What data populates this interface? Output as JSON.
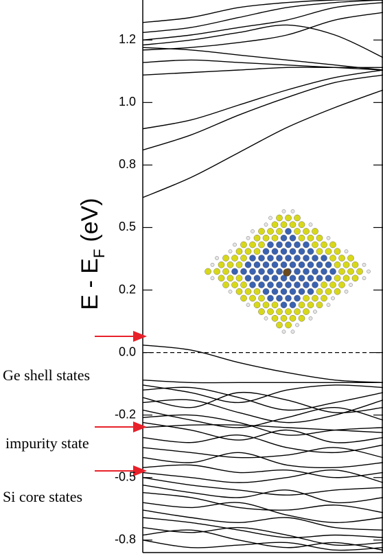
{
  "chart_data": {
    "type": "line",
    "ylabel_parts": [
      "E - E",
      "F",
      "(eV)"
    ],
    "annotations": [
      "Ge shell states",
      "impurity state",
      "Si core states"
    ],
    "x": [
      0,
      0.2,
      0.4,
      0.6,
      0.8,
      1.0
    ],
    "xlim": [
      0,
      1
    ],
    "ylim": [
      -0.8,
      1.41
    ],
    "yticks": [
      {
        "value": -0.75,
        "label": "-0.8"
      },
      {
        "value": -0.5,
        "label": "-0.5"
      },
      {
        "value": -0.25,
        "label": "-0.2"
      },
      {
        "value": 0,
        "label": "0.0"
      },
      {
        "value": 0.25,
        "label": "0.2"
      },
      {
        "value": 0.5,
        "label": "0.5"
      },
      {
        "value": 0.75,
        "label": "0.8"
      },
      {
        "value": 1.0,
        "label": "1.0"
      },
      {
        "value": 1.25,
        "label": "1.2"
      }
    ],
    "fermi_level": 0,
    "color": "#000000",
    "series": [
      {
        "values": [
          0.62,
          0.7,
          0.8,
          0.9,
          0.98,
          1.05
        ]
      },
      {
        "values": [
          0.81,
          0.87,
          0.95,
          1.02,
          1.08,
          1.11
        ]
      },
      {
        "values": [
          0.895,
          0.93,
          0.99,
          1.05,
          1.1,
          1.13
        ]
      },
      {
        "values": [
          1.11,
          1.12,
          1.13,
          1.14,
          1.14,
          1.14
        ]
      },
      {
        "values": [
          1.16,
          1.17,
          1.16,
          1.15,
          1.14,
          1.13
        ]
      },
      {
        "values": [
          1.22,
          1.21,
          1.19,
          1.17,
          1.15,
          1.13
        ]
      },
      {
        "values": [
          1.23,
          1.25,
          1.28,
          1.31,
          1.27,
          1.18
        ]
      },
      {
        "values": [
          1.21,
          1.22,
          1.24,
          1.27,
          1.33,
          1.36
        ]
      },
      {
        "values": [
          1.25,
          1.27,
          1.3,
          1.33,
          1.38,
          1.4
        ]
      },
      {
        "values": [
          1.28,
          1.3,
          1.34,
          1.38,
          1.4,
          1.41
        ]
      },
      {
        "values": [
          1.32,
          1.34,
          1.38,
          1.4,
          1.41,
          1.41
        ]
      },
      {
        "values": [
          0.03,
          0.01,
          -0.04,
          -0.08,
          -0.11,
          -0.12
        ]
      },
      {
        "values": [
          -0.11,
          -0.12,
          -0.12,
          -0.12,
          -0.12,
          -0.12
        ]
      },
      {
        "values": [
          -0.13,
          -0.16,
          -0.2,
          -0.15,
          -0.13,
          -0.14
        ]
      },
      {
        "values": [
          -0.15,
          -0.14,
          -0.18,
          -0.23,
          -0.2,
          -0.16
        ]
      },
      {
        "values": [
          -0.18,
          -0.22,
          -0.16,
          -0.19,
          -0.24,
          -0.22
        ]
      },
      {
        "values": [
          -0.2,
          -0.19,
          -0.24,
          -0.28,
          -0.25,
          -0.19
        ]
      },
      {
        "values": [
          -0.23,
          -0.27,
          -0.3,
          -0.26,
          -0.22,
          -0.27
        ]
      },
      {
        "values": [
          -0.26,
          -0.25,
          -0.28,
          -0.33,
          -0.31,
          -0.3
        ]
      },
      {
        "values": [
          -0.28,
          -0.31,
          -0.35,
          -0.31,
          -0.36,
          -0.34
        ]
      },
      {
        "values": [
          -0.3,
          -0.29,
          -0.29,
          -0.3,
          -0.31,
          -0.32
        ]
      },
      {
        "values": [
          -0.34,
          -0.36,
          -0.33,
          -0.38,
          -0.4,
          -0.37
        ]
      },
      {
        "values": [
          -0.38,
          -0.4,
          -0.42,
          -0.41,
          -0.38,
          -0.42
        ]
      },
      {
        "values": [
          -0.42,
          -0.44,
          -0.4,
          -0.45,
          -0.46,
          -0.44
        ]
      },
      {
        "values": [
          -0.46,
          -0.45,
          -0.48,
          -0.47,
          -0.5,
          -0.48
        ]
      },
      {
        "values": [
          -0.48,
          -0.5,
          -0.52,
          -0.5,
          -0.47,
          -0.52
        ]
      },
      {
        "values": [
          -0.5,
          -0.53,
          -0.55,
          -0.57,
          -0.55,
          -0.54
        ]
      },
      {
        "values": [
          -0.53,
          -0.56,
          -0.58,
          -0.55,
          -0.6,
          -0.58
        ]
      },
      {
        "values": [
          -0.56,
          -0.58,
          -0.62,
          -0.63,
          -0.61,
          -0.64
        ]
      },
      {
        "values": [
          -0.6,
          -0.62,
          -0.6,
          -0.65,
          -0.68,
          -0.66
        ]
      },
      {
        "values": [
          -0.63,
          -0.66,
          -0.68,
          -0.66,
          -0.7,
          -0.71
        ]
      },
      {
        "values": [
          -0.66,
          -0.68,
          -0.71,
          -0.74,
          -0.73,
          -0.74
        ]
      },
      {
        "values": [
          -0.7,
          -0.72,
          -0.7,
          -0.73,
          -0.77,
          -0.76
        ]
      },
      {
        "values": [
          -0.73,
          -0.71,
          -0.75,
          -0.78,
          -0.76,
          -0.79
        ]
      },
      {
        "values": [
          -0.75,
          -0.78,
          -0.77,
          -0.76,
          -0.79,
          -0.78
        ]
      }
    ]
  }
}
